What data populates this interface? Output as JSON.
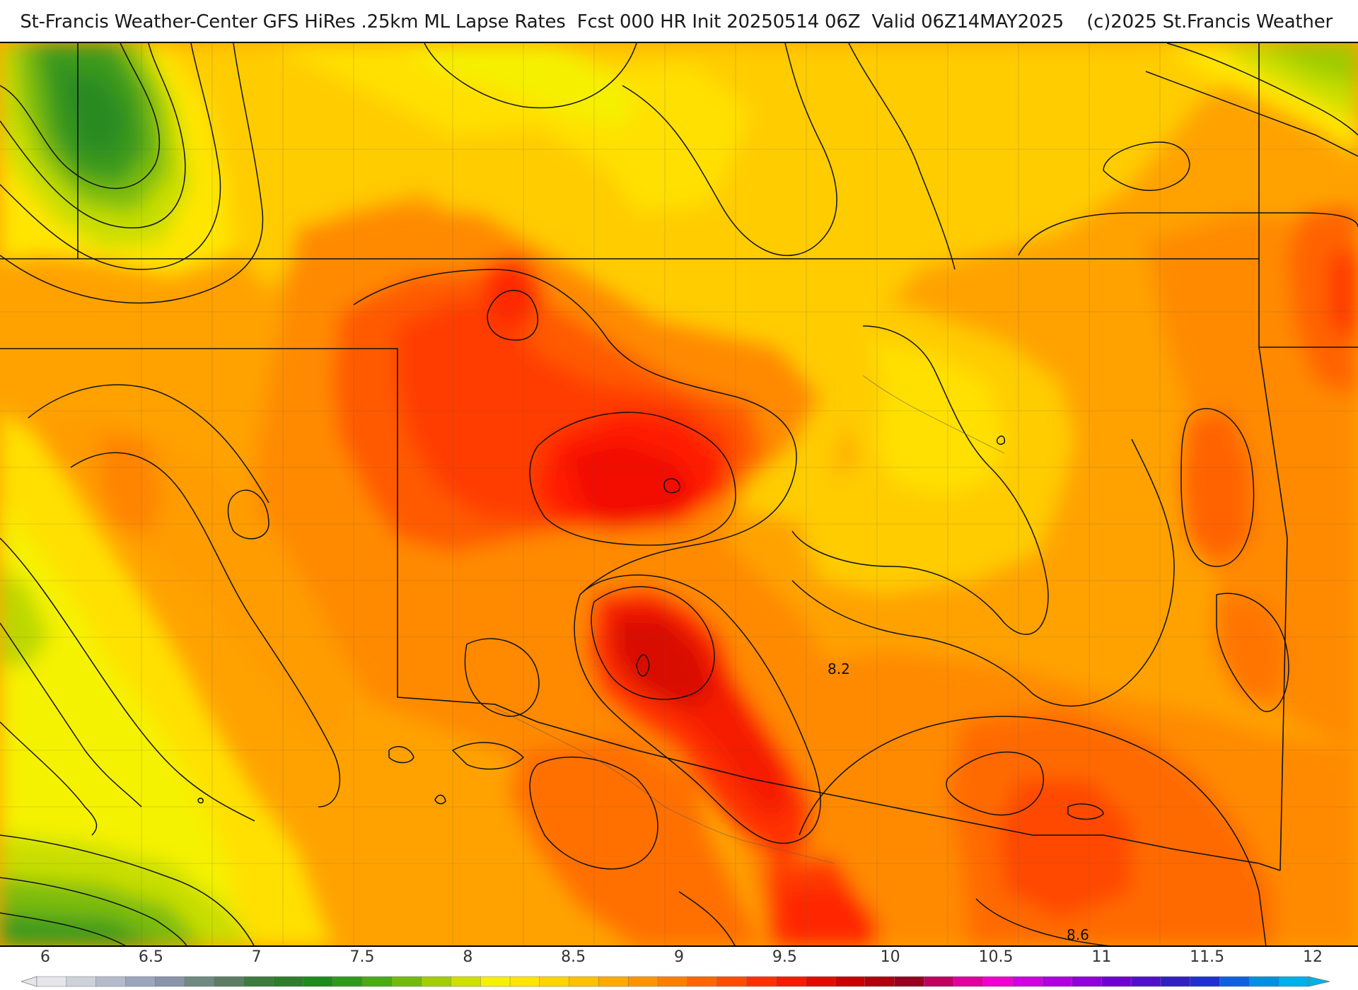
{
  "header": {
    "title": "St-Francis Weather-Center GFS HiRes .25km ML Lapse Rates  Fcst 000 HR Init 20250514 06Z  Valid 06Z14MAY2025    (c)2025 St.Francis Weather"
  },
  "map": {
    "contour_labels": [
      "8.2",
      "8.6"
    ]
  },
  "legend": {
    "ticks": [
      "6",
      "6.5",
      "7",
      "7.5",
      "8",
      "8.5",
      "9",
      "9.5",
      "10",
      "10.5",
      "11",
      "11.5",
      "12"
    ],
    "colors": [
      "#e6e6ea",
      "#cdd2da",
      "#b4bccb",
      "#9ba6bb",
      "#8a94a8",
      "#6f8a80",
      "#5a7d64",
      "#3f7a3f",
      "#2e7d2e",
      "#1f8a1f",
      "#2e9a1a",
      "#4caa14",
      "#74ba0e",
      "#a3cd08",
      "#cfe000",
      "#f5f200",
      "#ffe600",
      "#ffd400",
      "#ffc000",
      "#ffaa00",
      "#ff9400",
      "#ff7e00",
      "#ff6600",
      "#ff4d00",
      "#ff3000",
      "#f51a00",
      "#e00c00",
      "#c80000",
      "#b00010",
      "#980020",
      "#c00060",
      "#e000a0",
      "#f000d0",
      "#d000e0",
      "#b000e0",
      "#9000d8",
      "#7000d0",
      "#5010c8",
      "#3020c0",
      "#2030d0",
      "#1060e0",
      "#0090e0",
      "#00b0e8"
    ]
  }
}
